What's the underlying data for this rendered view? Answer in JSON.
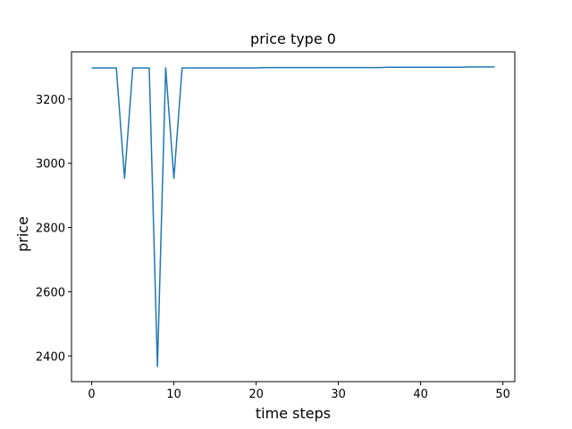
{
  "chart_data": {
    "type": "line",
    "title": "price type 0",
    "x_label": "time steps",
    "y_label": "price",
    "x": [
      0,
      1,
      2,
      3,
      4,
      5,
      6,
      7,
      8,
      9,
      10,
      11,
      12,
      13,
      14,
      15,
      16,
      17,
      18,
      19,
      20,
      21,
      22,
      23,
      24,
      25,
      26,
      27,
      28,
      29,
      30,
      31,
      32,
      33,
      34,
      35,
      36,
      37,
      38,
      39,
      40,
      41,
      42,
      43,
      44,
      45,
      46,
      47,
      48,
      49
    ],
    "series": [
      {
        "name": "price",
        "color": "#1f77b4",
        "values": [
          3297,
          3297,
          3297,
          3297,
          2953,
          3297,
          3297,
          3297,
          2367,
          3297,
          2953,
          3297,
          3297,
          3297,
          3297,
          3297,
          3297,
          3297,
          3297,
          3297,
          3297,
          3298,
          3298,
          3298,
          3298,
          3298,
          3298,
          3298,
          3298,
          3298,
          3298,
          3298,
          3298,
          3298,
          3298,
          3298,
          3299,
          3299,
          3299,
          3299,
          3299,
          3299,
          3299,
          3299,
          3299,
          3299,
          3300,
          3300,
          3300,
          3300
        ]
      }
    ],
    "xlim": [
      -2.45,
      51.45
    ],
    "xticks": [
      0,
      10,
      20,
      30,
      40,
      50
    ],
    "ylim": [
      2320,
      3347
    ],
    "yticks": [
      2400,
      2600,
      2800,
      3000,
      3200
    ],
    "grid": false
  }
}
